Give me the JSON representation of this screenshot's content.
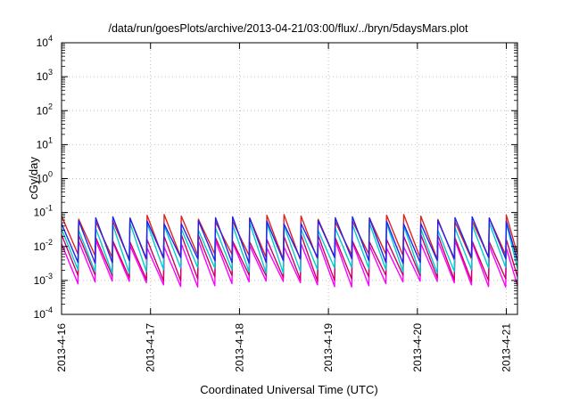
{
  "chart_data": {
    "type": "line",
    "title": "/data/run/goesPlots/archive/2013-04-21/03:00/flux/../bryn/5daysMars.plot",
    "xlabel": "Coordinated Universal Time (UTC)",
    "ylabel": "cGy/day",
    "yscale": "log",
    "ylim": [
      0.0001,
      10000
    ],
    "yticks": [
      {
        "base": "10",
        "exp": "-4"
      },
      {
        "base": "10",
        "exp": "-3"
      },
      {
        "base": "10",
        "exp": "-2"
      },
      {
        "base": "10",
        "exp": "-1"
      },
      {
        "base": "10",
        "exp": "0"
      },
      {
        "base": "10",
        "exp": "1"
      },
      {
        "base": "10",
        "exp": "2"
      },
      {
        "base": "10",
        "exp": "3"
      },
      {
        "base": "10",
        "exp": "4"
      }
    ],
    "xlim": [
      "2013-04-16T00:00",
      "2013-04-21T03:00"
    ],
    "xticks": [
      "2013-4-16",
      "2013-4-17",
      "2013-4-18",
      "2013-4-19",
      "2013-4-20",
      "2013-4-21"
    ],
    "grid": true,
    "legend": "none",
    "pattern": "sawtooth, ~5.2 cycles per day",
    "series": [
      {
        "color": "#ff00ff",
        "peak": 0.012,
        "trough": 0.0008
      },
      {
        "color": "#cc0066",
        "peak": 0.018,
        "trough": 0.0012
      },
      {
        "color": "#dd2222",
        "peak": 0.07,
        "trough": 0.005
      },
      {
        "color": "#00cccc",
        "peak": 0.04,
        "trough": 0.002
      },
      {
        "color": "#2222ee",
        "peak": 0.06,
        "trough": 0.004
      }
    ]
  }
}
